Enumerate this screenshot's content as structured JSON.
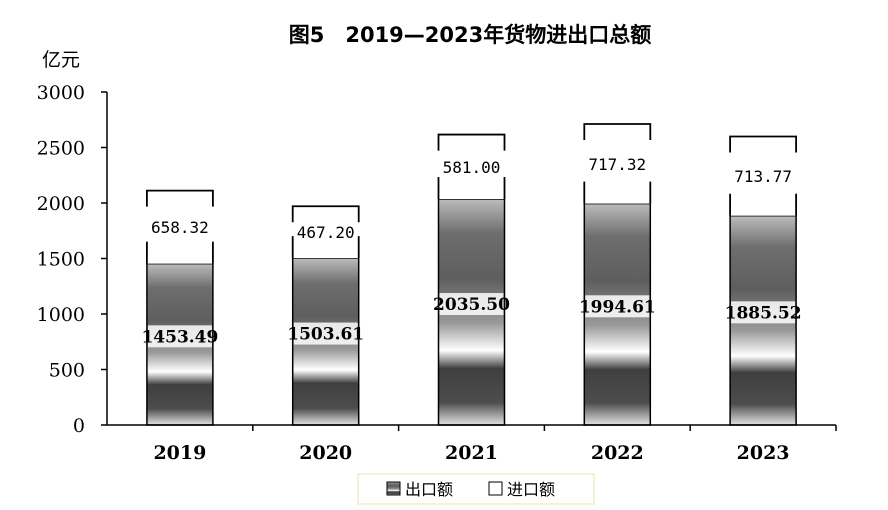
{
  "chart_data": {
    "type": "bar",
    "stacked": true,
    "title": "图5　2019—2023年货物进出口总额",
    "unit_label": "亿元",
    "categories": [
      "2019",
      "2020",
      "2021",
      "2022",
      "2023"
    ],
    "series": [
      {
        "name": "出口额",
        "values": [
          1453.49,
          1503.61,
          2035.5,
          1994.61,
          1885.52
        ],
        "labels": [
          "1453.49",
          "1503.61",
          "2035.50",
          "1994.61",
          "1885.52"
        ]
      },
      {
        "name": "进口额",
        "values": [
          658.32,
          467.2,
          581.0,
          717.32,
          713.77
        ],
        "labels": [
          "658.32",
          "467.20",
          "581.00",
          "717.32",
          "713.77"
        ]
      }
    ],
    "y_ticks": [
      "0",
      "500",
      "1000",
      "1500",
      "2000",
      "2500",
      "3000"
    ],
    "ylim": [
      0,
      3000
    ],
    "grid": false,
    "legend_position": "bottom-center",
    "colors": {
      "export_dark": "#3f3f3f",
      "export_light": "#ffffff",
      "import_fill": "#ffffff",
      "axis": "#000000",
      "legend_border": "#e6e6a8"
    }
  }
}
